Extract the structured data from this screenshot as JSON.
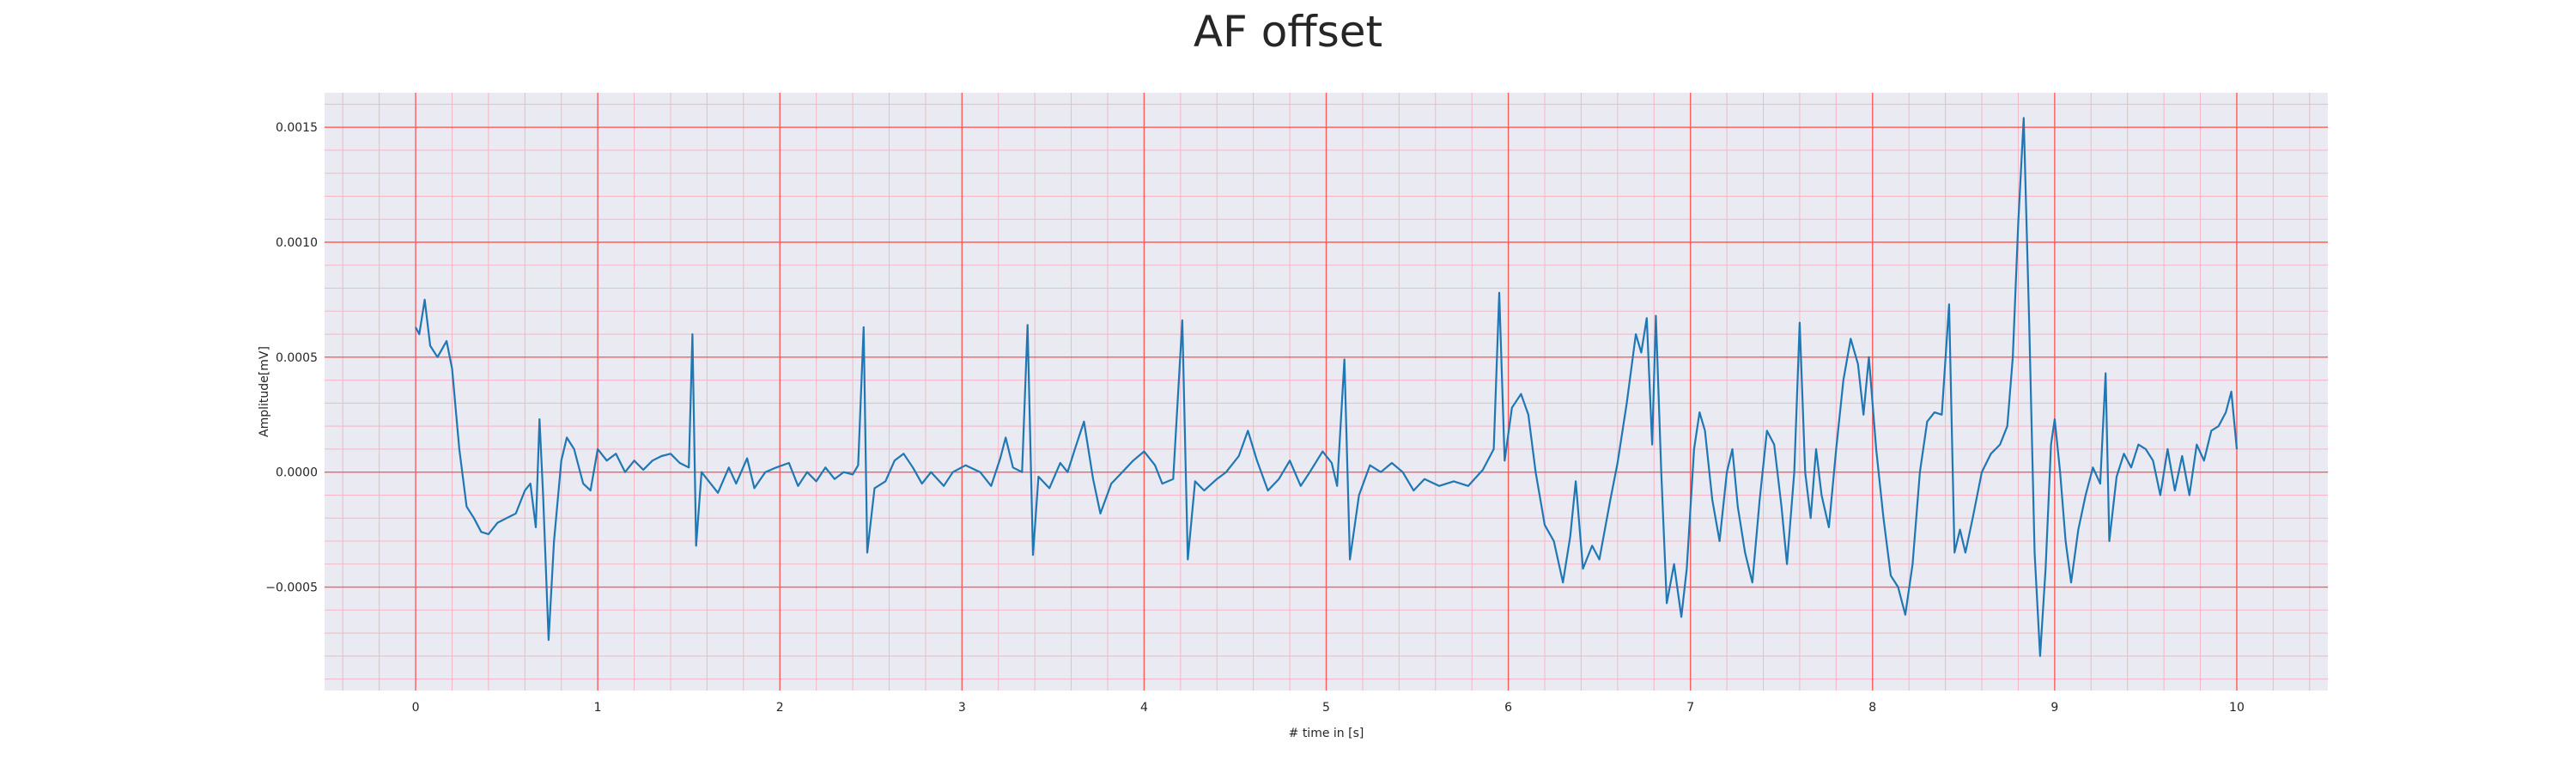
{
  "chart_data": {
    "type": "line",
    "title": "AF offset",
    "xlabel": "# time in [s]",
    "ylabel": "Amplitude[mV]",
    "xlim": [
      -0.5,
      10.5
    ],
    "ylim": [
      -0.00095,
      0.00165
    ],
    "x_ticks": [
      0,
      1,
      2,
      3,
      4,
      5,
      6,
      7,
      8,
      9,
      10
    ],
    "y_ticks": [
      -0.0005,
      0.0,
      0.0005,
      0.001,
      0.0015
    ],
    "y_tick_labels": [
      "−0.0005",
      "0.0000",
      "0.0005",
      "0.0010",
      "0.0015"
    ],
    "grid": true,
    "minor_grid": true,
    "colors": {
      "background": "#eaeaf2",
      "major_grid": "#ff5c5c",
      "minor_grid": "#f6b6c4",
      "line": "#1f77b4"
    },
    "series": [
      {
        "points": [
          [
            0.0,
            0.00063
          ],
          [
            0.02,
            0.0006
          ],
          [
            0.05,
            0.00075
          ],
          [
            0.08,
            0.00055
          ],
          [
            0.12,
            0.0005
          ],
          [
            0.17,
            0.00057
          ],
          [
            0.2,
            0.00045
          ],
          [
            0.24,
            0.0001
          ],
          [
            0.28,
            -0.00015
          ],
          [
            0.32,
            -0.0002
          ],
          [
            0.36,
            -0.00026
          ],
          [
            0.4,
            -0.00027
          ],
          [
            0.45,
            -0.00022
          ],
          [
            0.5,
            -0.0002
          ],
          [
            0.55,
            -0.00018
          ],
          [
            0.6,
            -8e-05
          ],
          [
            0.63,
            -5e-05
          ],
          [
            0.66,
            -0.00024
          ],
          [
            0.68,
            0.00023
          ],
          [
            0.7,
            -0.0001
          ],
          [
            0.73,
            -0.00073
          ],
          [
            0.76,
            -0.0003
          ],
          [
            0.8,
            5e-05
          ],
          [
            0.83,
            0.00015
          ],
          [
            0.87,
            0.0001
          ],
          [
            0.92,
            -5e-05
          ],
          [
            0.96,
            -8e-05
          ],
          [
            1.0,
            0.0001
          ],
          [
            1.05,
            5e-05
          ],
          [
            1.1,
            8e-05
          ],
          [
            1.15,
            0.0
          ],
          [
            1.2,
            5e-05
          ],
          [
            1.25,
            1e-05
          ],
          [
            1.3,
            5e-05
          ],
          [
            1.35,
            7e-05
          ],
          [
            1.4,
            8e-05
          ],
          [
            1.45,
            4e-05
          ],
          [
            1.5,
            2e-05
          ],
          [
            1.52,
            0.0006
          ],
          [
            1.54,
            -0.00032
          ],
          [
            1.57,
            0.0
          ],
          [
            1.62,
            -5e-05
          ],
          [
            1.66,
            -9e-05
          ],
          [
            1.72,
            2e-05
          ],
          [
            1.76,
            -5e-05
          ],
          [
            1.82,
            6e-05
          ],
          [
            1.86,
            -7e-05
          ],
          [
            1.92,
            0.0
          ],
          [
            1.98,
            2e-05
          ],
          [
            2.05,
            4e-05
          ],
          [
            2.1,
            -6e-05
          ],
          [
            2.15,
            0.0
          ],
          [
            2.2,
            -4e-05
          ],
          [
            2.25,
            2e-05
          ],
          [
            2.3,
            -3e-05
          ],
          [
            2.35,
            0.0
          ],
          [
            2.4,
            -1e-05
          ],
          [
            2.43,
            3e-05
          ],
          [
            2.46,
            0.00063
          ],
          [
            2.48,
            -0.00035
          ],
          [
            2.52,
            -7e-05
          ],
          [
            2.58,
            -4e-05
          ],
          [
            2.63,
            5e-05
          ],
          [
            2.68,
            8e-05
          ],
          [
            2.73,
            2e-05
          ],
          [
            2.78,
            -5e-05
          ],
          [
            2.83,
            0.0
          ],
          [
            2.9,
            -6e-05
          ],
          [
            2.95,
            0.0
          ],
          [
            3.02,
            3e-05
          ],
          [
            3.1,
            0.0
          ],
          [
            3.16,
            -6e-05
          ],
          [
            3.21,
            6e-05
          ],
          [
            3.24,
            0.00015
          ],
          [
            3.28,
            2e-05
          ],
          [
            3.33,
            0.0
          ],
          [
            3.36,
            0.00064
          ],
          [
            3.39,
            -0.00036
          ],
          [
            3.42,
            -2e-05
          ],
          [
            3.48,
            -7e-05
          ],
          [
            3.54,
            4e-05
          ],
          [
            3.58,
            0.0
          ],
          [
            3.62,
            0.0001
          ],
          [
            3.67,
            0.00022
          ],
          [
            3.72,
            -3e-05
          ],
          [
            3.76,
            -0.00018
          ],
          [
            3.82,
            -5e-05
          ],
          [
            3.88,
            0.0
          ],
          [
            3.94,
            5e-05
          ],
          [
            4.0,
            9e-05
          ],
          [
            4.06,
            3e-05
          ],
          [
            4.1,
            -5e-05
          ],
          [
            4.16,
            -3e-05
          ],
          [
            4.21,
            0.00066
          ],
          [
            4.24,
            -0.00038
          ],
          [
            4.28,
            -4e-05
          ],
          [
            4.33,
            -8e-05
          ],
          [
            4.4,
            -3e-05
          ],
          [
            4.45,
            0.0
          ],
          [
            4.52,
            7e-05
          ],
          [
            4.57,
            0.00018
          ],
          [
            4.62,
            5e-05
          ],
          [
            4.68,
            -8e-05
          ],
          [
            4.74,
            -3e-05
          ],
          [
            4.8,
            5e-05
          ],
          [
            4.86,
            -6e-05
          ],
          [
            4.91,
            0.0
          ],
          [
            4.98,
            9e-05
          ],
          [
            5.03,
            4e-05
          ],
          [
            5.06,
            -6e-05
          ],
          [
            5.1,
            0.00049
          ],
          [
            5.13,
            -0.00038
          ],
          [
            5.18,
            -0.0001
          ],
          [
            5.24,
            3e-05
          ],
          [
            5.3,
            0.0
          ],
          [
            5.36,
            4e-05
          ],
          [
            5.42,
            0.0
          ],
          [
            5.48,
            -8e-05
          ],
          [
            5.54,
            -3e-05
          ],
          [
            5.62,
            -6e-05
          ],
          [
            5.7,
            -4e-05
          ],
          [
            5.78,
            -6e-05
          ],
          [
            5.86,
            1e-05
          ],
          [
            5.92,
            0.0001
          ],
          [
            5.95,
            0.00078
          ],
          [
            5.98,
            5e-05
          ],
          [
            6.02,
            0.00028
          ],
          [
            6.07,
            0.00034
          ],
          [
            6.11,
            0.00025
          ],
          [
            6.15,
            0.0
          ],
          [
            6.2,
            -0.00023
          ],
          [
            6.25,
            -0.0003
          ],
          [
            6.3,
            -0.00048
          ],
          [
            6.34,
            -0.00028
          ],
          [
            6.37,
            -4e-05
          ],
          [
            6.41,
            -0.00042
          ],
          [
            6.46,
            -0.00032
          ],
          [
            6.5,
            -0.00038
          ],
          [
            6.56,
            -0.00012
          ],
          [
            6.6,
            4e-05
          ],
          [
            6.65,
            0.0003
          ],
          [
            6.7,
            0.0006
          ],
          [
            6.73,
            0.00052
          ],
          [
            6.76,
            0.00067
          ],
          [
            6.79,
            0.00012
          ],
          [
            6.81,
            0.00068
          ],
          [
            6.84,
            0.0
          ],
          [
            6.87,
            -0.00057
          ],
          [
            6.91,
            -0.0004
          ],
          [
            6.95,
            -0.00063
          ],
          [
            6.98,
            -0.00042
          ],
          [
            7.02,
            0.0001
          ],
          [
            7.05,
            0.00026
          ],
          [
            7.08,
            0.00018
          ],
          [
            7.12,
            -0.00012
          ],
          [
            7.16,
            -0.0003
          ],
          [
            7.2,
            0.0
          ],
          [
            7.23,
            0.0001
          ],
          [
            7.26,
            -0.00015
          ],
          [
            7.3,
            -0.00035
          ],
          [
            7.34,
            -0.00048
          ],
          [
            7.38,
            -0.00012
          ],
          [
            7.42,
            0.00018
          ],
          [
            7.46,
            0.00012
          ],
          [
            7.5,
            -0.00015
          ],
          [
            7.53,
            -0.0004
          ],
          [
            7.57,
            0.0
          ],
          [
            7.6,
            0.00065
          ],
          [
            7.63,
            0.0
          ],
          [
            7.66,
            -0.0002
          ],
          [
            7.69,
            0.0001
          ],
          [
            7.72,
            -0.0001
          ],
          [
            7.76,
            -0.00024
          ],
          [
            7.8,
            0.0001
          ],
          [
            7.84,
            0.0004
          ],
          [
            7.88,
            0.00058
          ],
          [
            7.92,
            0.00047
          ],
          [
            7.95,
            0.00025
          ],
          [
            7.98,
            0.0005
          ],
          [
            8.02,
            0.0001
          ],
          [
            8.06,
            -0.0002
          ],
          [
            8.1,
            -0.00045
          ],
          [
            8.14,
            -0.0005
          ],
          [
            8.18,
            -0.00062
          ],
          [
            8.22,
            -0.0004
          ],
          [
            8.26,
            0.0
          ],
          [
            8.3,
            0.00022
          ],
          [
            8.34,
            0.00026
          ],
          [
            8.38,
            0.00025
          ],
          [
            8.42,
            0.00073
          ],
          [
            8.45,
            -0.00035
          ],
          [
            8.48,
            -0.00025
          ],
          [
            8.51,
            -0.00035
          ],
          [
            8.55,
            -0.0002
          ],
          [
            8.6,
            0.0
          ],
          [
            8.65,
            8e-05
          ],
          [
            8.7,
            0.00012
          ],
          [
            8.74,
            0.0002
          ],
          [
            8.77,
            0.0005
          ],
          [
            8.8,
            0.00108
          ],
          [
            8.83,
            0.00154
          ],
          [
            8.86,
            0.00065
          ],
          [
            8.89,
            -0.00035
          ],
          [
            8.92,
            -0.0008
          ],
          [
            8.95,
            -0.00042
          ],
          [
            8.98,
            0.00012
          ],
          [
            9.0,
            0.00023
          ],
          [
            9.03,
            0.0
          ],
          [
            9.06,
            -0.0003
          ],
          [
            9.09,
            -0.00048
          ],
          [
            9.13,
            -0.00025
          ],
          [
            9.17,
            -0.0001
          ],
          [
            9.21,
            2e-05
          ],
          [
            9.25,
            -5e-05
          ],
          [
            9.28,
            0.00043
          ],
          [
            9.3,
            -0.0003
          ],
          [
            9.34,
            -2e-05
          ],
          [
            9.38,
            8e-05
          ],
          [
            9.42,
            2e-05
          ],
          [
            9.46,
            0.00012
          ],
          [
            9.5,
            0.0001
          ],
          [
            9.54,
            5e-05
          ],
          [
            9.58,
            -0.0001
          ],
          [
            9.62,
            0.0001
          ],
          [
            9.66,
            -8e-05
          ],
          [
            9.7,
            7e-05
          ],
          [
            9.74,
            -0.0001
          ],
          [
            9.78,
            0.00012
          ],
          [
            9.82,
            5e-05
          ],
          [
            9.86,
            0.00018
          ],
          [
            9.9,
            0.0002
          ],
          [
            9.94,
            0.00026
          ],
          [
            9.97,
            0.00035
          ],
          [
            10.0,
            0.0001
          ]
        ]
      }
    ]
  }
}
